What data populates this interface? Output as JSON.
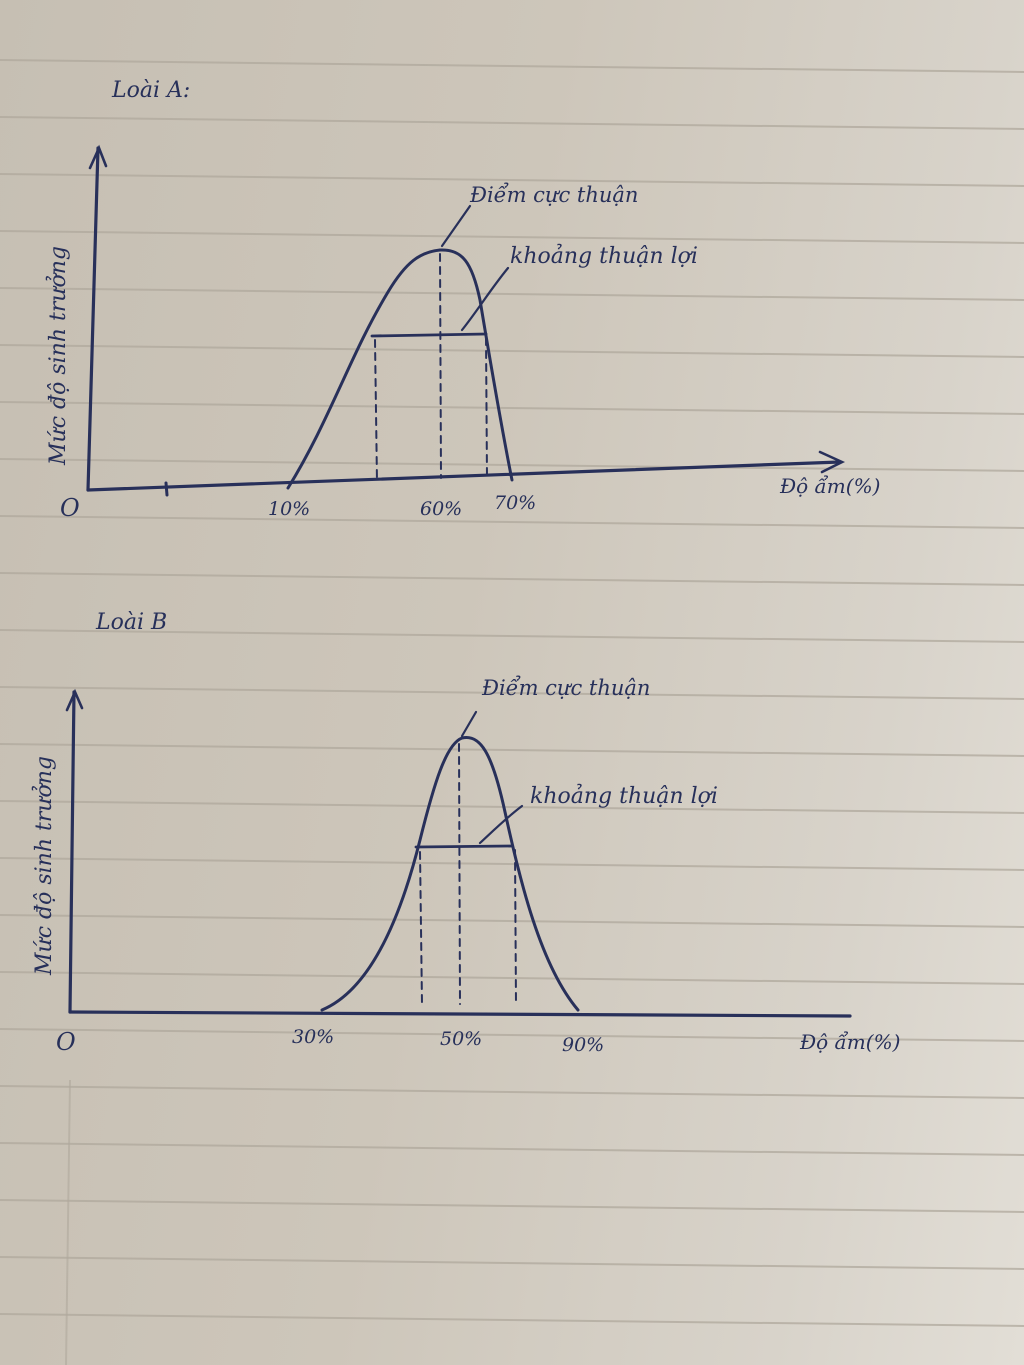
{
  "diagrams": [
    {
      "heading": "Loài A:",
      "y_axis_label": "Mức độ sinh trưởng",
      "x_axis_label": "Độ ẩm(%)",
      "origin_label": "O",
      "ticks": [
        "10%",
        "60%",
        "70%"
      ],
      "peak_label": "Điểm cực thuận",
      "range_label": "khoảng thuận lợi"
    },
    {
      "heading": "Loài B",
      "y_axis_label": "Mức độ sinh trưởng",
      "x_axis_label": "Độ ẩm(%)",
      "origin_label": "O",
      "ticks": [
        "30%",
        "50%",
        "90%"
      ],
      "peak_label": "Điểm cực thuận",
      "range_label": "khoảng thuận lợi"
    }
  ],
  "colors": {
    "ink": "#28305a",
    "paper": "#d6d0c5",
    "rule": "#b3aca0"
  }
}
